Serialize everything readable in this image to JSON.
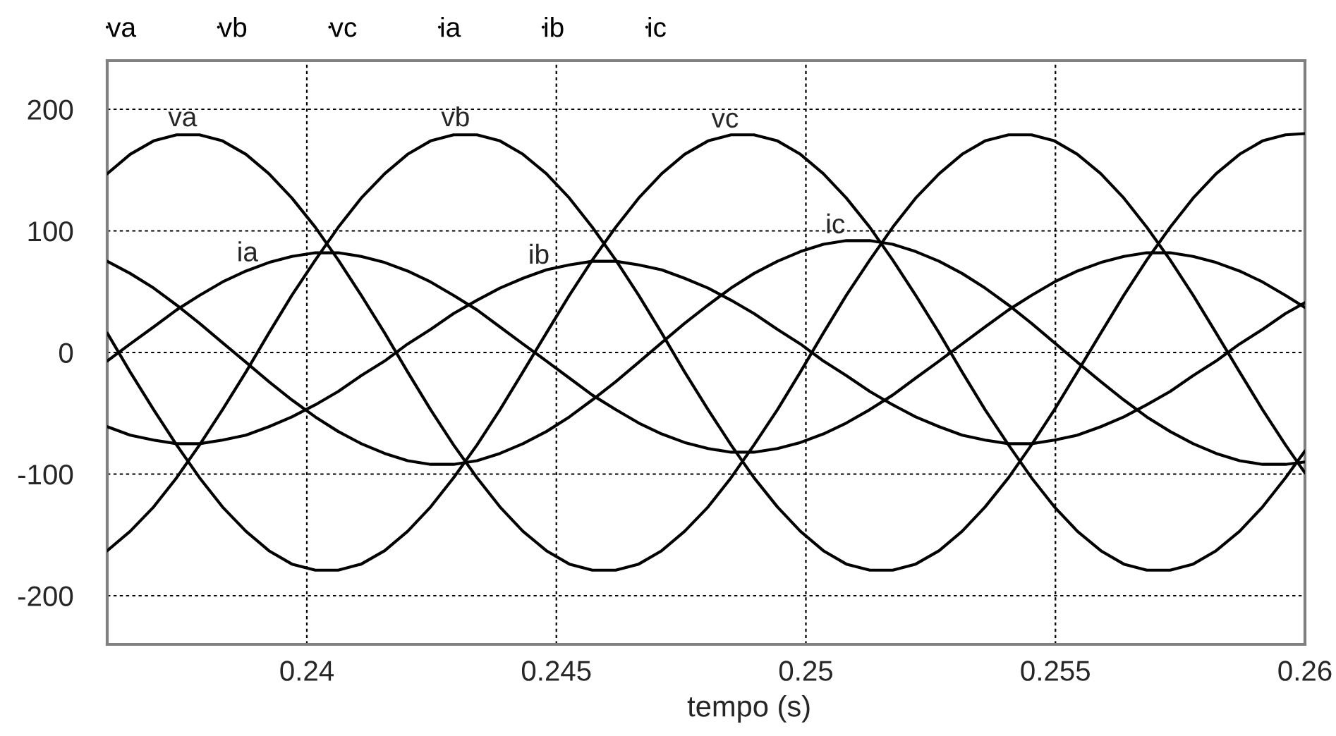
{
  "chart_data": {
    "type": "line",
    "xlabel": "tempo (s)",
    "x": [
      0.236,
      0.23646,
      0.23693,
      0.23739,
      0.23785,
      0.23831,
      0.23878,
      0.23924,
      0.2397,
      0.24017,
      0.24063,
      0.24109,
      0.24156,
      0.24202,
      0.24248,
      0.24294,
      0.24341,
      0.24387,
      0.24433,
      0.2448,
      0.24526,
      0.24572,
      0.24619,
      0.24665,
      0.24711,
      0.24757,
      0.24804,
      0.2485,
      0.24896,
      0.24943,
      0.24989,
      0.25035,
      0.25081,
      0.25128,
      0.25174,
      0.2522,
      0.25267,
      0.25313,
      0.25359,
      0.25406,
      0.25452,
      0.25498,
      0.25544,
      0.25591,
      0.25637,
      0.25683,
      0.2573,
      0.25776,
      0.25822,
      0.25869,
      0.25915,
      0.25961,
      0.26
    ],
    "series": [
      {
        "name": "va",
        "color": "#000000",
        "values": [
          147,
          163,
          174,
          179,
          179,
          174,
          163,
          147,
          127,
          103,
          76,
          47,
          16,
          -16,
          -47,
          -76,
          -103,
          -127,
          -147,
          -163,
          -174,
          -179,
          -179,
          -174,
          -163,
          -147,
          -127,
          -103,
          -76,
          -47,
          -16,
          16,
          47,
          76,
          103,
          127,
          147,
          163,
          174,
          179,
          179,
          174,
          163,
          147,
          127,
          103,
          76,
          47,
          16,
          -16,
          -47,
          -76,
          -99
        ]
      },
      {
        "name": "vb",
        "color": "#000000",
        "values": [
          -163,
          -147,
          -127,
          -103,
          -76,
          -47,
          -16,
          16,
          47,
          76,
          103,
          127,
          147,
          163,
          174,
          179,
          179,
          174,
          163,
          147,
          127,
          103,
          76,
          47,
          16,
          -16,
          -47,
          -76,
          -103,
          -127,
          -147,
          -163,
          -174,
          -179,
          -179,
          -174,
          -163,
          -147,
          -127,
          -103,
          -76,
          -47,
          -16,
          16,
          47,
          76,
          103,
          127,
          147,
          163,
          174,
          179,
          180
        ]
      },
      {
        "name": "vc",
        "color": "#000000",
        "values": [
          16,
          -16,
          -47,
          -76,
          -103,
          -127,
          -147,
          -163,
          -174,
          -179,
          -179,
          -174,
          -163,
          -147,
          -127,
          -103,
          -76,
          -47,
          -16,
          16,
          47,
          76,
          103,
          127,
          147,
          163,
          174,
          179,
          179,
          174,
          163,
          147,
          127,
          103,
          76,
          47,
          16,
          -16,
          -47,
          -76,
          -103,
          -127,
          -147,
          -163,
          -174,
          -179,
          -179,
          -174,
          -163,
          -147,
          -127,
          -103,
          -81
        ]
      },
      {
        "name": "ia",
        "color": "#000000",
        "values": [
          -7,
          7,
          21,
          35,
          47,
          58,
          67,
          74,
          79,
          82,
          82,
          79,
          74,
          67,
          58,
          47,
          35,
          21,
          7,
          -7,
          -21,
          -35,
          -47,
          -58,
          -67,
          -74,
          -79,
          -82,
          -82,
          -79,
          -74,
          -67,
          -58,
          -47,
          -35,
          -21,
          -7,
          7,
          21,
          35,
          47,
          58,
          67,
          74,
          79,
          82,
          82,
          79,
          74,
          67,
          58,
          47,
          37
        ]
      },
      {
        "name": "ib",
        "color": "#000000",
        "values": [
          -61,
          -68,
          -72,
          -75,
          -75,
          -72,
          -68,
          -61,
          -53,
          -43,
          -32,
          -19,
          -7,
          7,
          19,
          32,
          43,
          53,
          61,
          68,
          72,
          75,
          75,
          72,
          68,
          61,
          53,
          43,
          32,
          19,
          7,
          -7,
          -19,
          -32,
          -43,
          -53,
          -61,
          -68,
          -72,
          -75,
          -75,
          -72,
          -68,
          -61,
          -53,
          -43,
          -32,
          -19,
          -7,
          7,
          19,
          32,
          41
        ]
      },
      {
        "name": "ic",
        "color": "#000000",
        "values": [
          75,
          65,
          53,
          39,
          24,
          8,
          -8,
          -24,
          -39,
          -53,
          -65,
          -75,
          -83,
          -89,
          -92,
          -92,
          -89,
          -83,
          -75,
          -65,
          -53,
          -39,
          -24,
          -8,
          8,
          24,
          39,
          53,
          65,
          75,
          83,
          89,
          92,
          92,
          89,
          83,
          75,
          65,
          53,
          39,
          24,
          8,
          -8,
          -24,
          -39,
          -53,
          -65,
          -75,
          -83,
          -89,
          -92,
          -92,
          -90
        ]
      }
    ],
    "xlim": [
      0.236,
      0.26
    ],
    "xticks": [
      0.24,
      0.245,
      0.25,
      0.255,
      0.26
    ],
    "ylim": [
      -240,
      240
    ],
    "yticks": [
      -200,
      -100,
      0,
      100,
      200
    ],
    "grid": true,
    "legend": "top left",
    "line_style": "solid",
    "annotations": [
      {
        "text": "va",
        "x": 0.23751,
        "y": 179
      },
      {
        "text": "vb",
        "x": 0.24298,
        "y": 179
      },
      {
        "text": "vc",
        "x": 0.24838,
        "y": 178
      },
      {
        "text": "ia",
        "x": 0.23881,
        "y": 68
      },
      {
        "text": "ib",
        "x": 0.24465,
        "y": 66
      },
      {
        "text": "ic",
        "x": 0.25059,
        "y": 91
      }
    ]
  }
}
